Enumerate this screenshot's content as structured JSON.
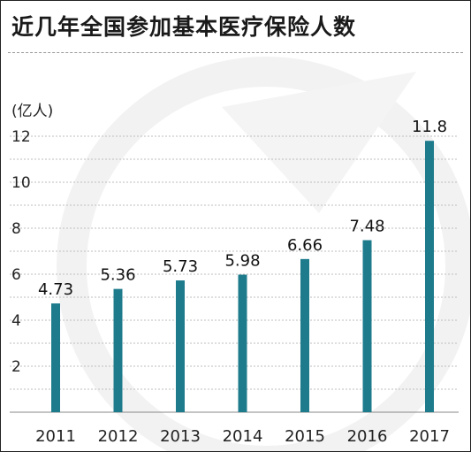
{
  "title": "近几年全国参加基本医疗保险人数",
  "chart_data": {
    "type": "bar",
    "title": "近几年全国参加基本医疗保险人数",
    "ylabel": "(亿人)",
    "xlabel": "",
    "categories": [
      "2011",
      "2012",
      "2013",
      "2014",
      "2015",
      "2016",
      "2017"
    ],
    "values": [
      4.73,
      5.36,
      5.73,
      5.98,
      6.66,
      7.48,
      11.8
    ],
    "value_labels": [
      "4.73",
      "5.36",
      "5.73",
      "5.98",
      "6.66",
      "7.48",
      "11.8"
    ],
    "yticks": [
      2,
      4,
      6,
      8,
      10,
      12
    ],
    "ylim": [
      0,
      12.5
    ],
    "grid": true,
    "bar_color": "#1d7b8c",
    "legend": "none"
  }
}
